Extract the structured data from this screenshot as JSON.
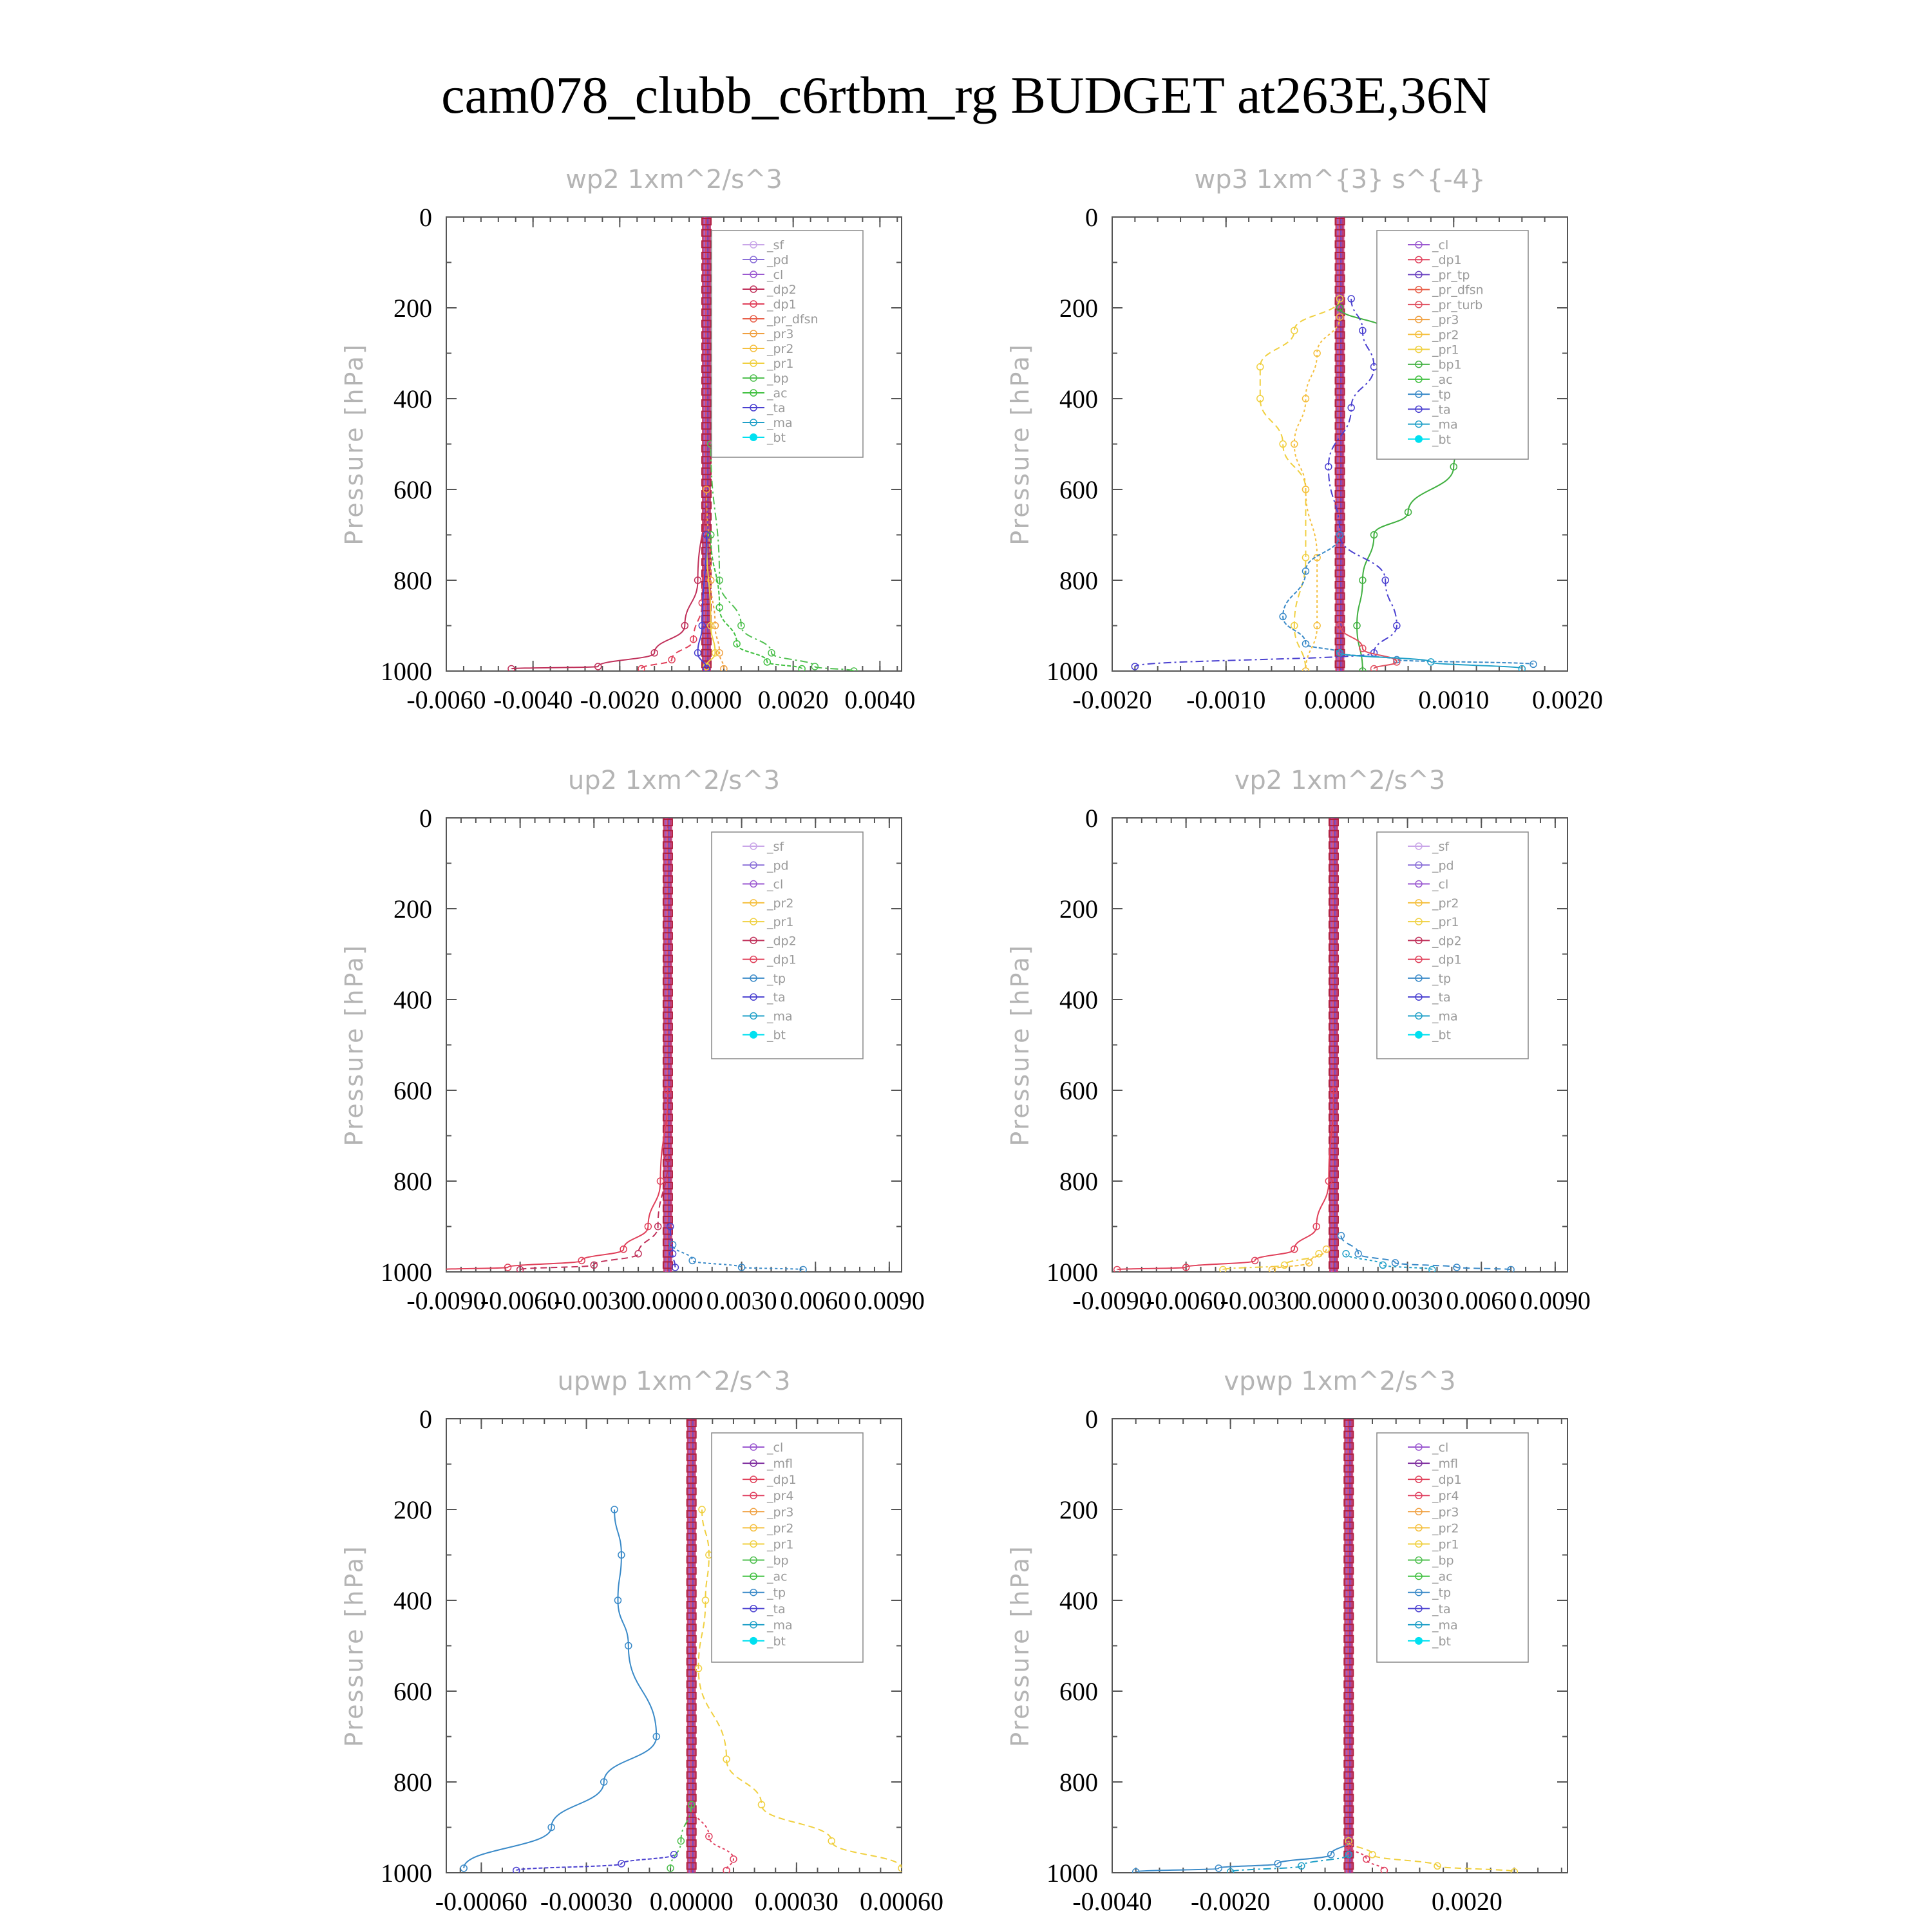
{
  "figure_title": "cam078_clubb_c6rtbm_rg  BUDGET at263E,36N",
  "colors": {
    "_sf": "#c9a6e8",
    "_pd": "#8a6fd8",
    "_cl": "#9b59d0",
    "_dp2": "#c0305a",
    "_dp1": "#e0405a",
    "_pr_dfsn": "#e8604a",
    "_pr3": "#f0a040",
    "_pr2": "#f5c040",
    "_pr1": "#f0d040",
    "_bp": "#50c050",
    "_ac": "#40c040",
    "_tp": "#3a8ac8",
    "_ta": "#4a40d0",
    "_ma": "#20a0c8",
    "_bt": "#00e0f0",
    "_pr_tp": "#6a40c0",
    "_pr_turb": "#e05060",
    "_bp1": "#40b040",
    "_mfl": "#8030a0",
    "_pr4": "#e04060"
  },
  "chart_data": [
    {
      "type": "line",
      "title": "wp2   1xm^2/s^3",
      "ylabel": "Pressure [hPa]",
      "xlim": [
        -0.006,
        0.0045
      ],
      "ylim": [
        1000,
        0
      ],
      "xticks": [
        -0.006,
        -0.004,
        -0.002,
        0.0,
        0.002,
        0.004
      ],
      "xtick_labels": [
        "-0.0060",
        "-0.0040",
        "-0.0020",
        "0.0000",
        "0.0020",
        "0.0040"
      ],
      "yticks": [
        0,
        200,
        400,
        600,
        800,
        1000
      ],
      "ytick_labels": [
        "0",
        "200",
        "400",
        "600",
        "800",
        "1000"
      ],
      "legend": [
        "_sf",
        "_pd",
        "_cl",
        "_dp2",
        "_dp1",
        "_pr_dfsn",
        "_pr3",
        "_pr2",
        "_pr1",
        "_bp",
        "_ac",
        "_ta",
        "_ma",
        "_bt"
      ],
      "series": [
        {
          "name": "_dp2",
          "x": [
            -0.0045,
            -0.0025,
            -0.0012,
            -0.0005,
            -0.0002,
            0.0
          ],
          "y": [
            995,
            990,
            960,
            900,
            800,
            600
          ]
        },
        {
          "name": "_dp1",
          "x": [
            -0.0015,
            -0.0008,
            -0.0003,
            -0.0001,
            0.0
          ],
          "y": [
            995,
            975,
            930,
            850,
            700
          ]
        },
        {
          "name": "_pr3",
          "x": [
            0.0004,
            0.0003,
            0.0002,
            0.0001,
            0.0
          ],
          "y": [
            995,
            960,
            900,
            800,
            600
          ]
        },
        {
          "name": "_bp",
          "x": [
            0.0034,
            0.0025,
            0.0015,
            0.0008,
            0.0003,
            0.0001
          ],
          "y": [
            1000,
            990,
            960,
            900,
            800,
            500
          ]
        },
        {
          "name": "_ac",
          "x": [
            0.0022,
            0.0014,
            0.0007,
            0.0003,
            0.0001
          ],
          "y": [
            995,
            980,
            940,
            860,
            700
          ]
        },
        {
          "name": "_pr1",
          "x": [
            0.0,
            0.0002,
            0.0001,
            0.0
          ],
          "y": [
            990,
            960,
            900,
            700
          ]
        },
        {
          "name": "_ta",
          "x": [
            0.0,
            -0.0002,
            -0.0001,
            0.0
          ],
          "y": [
            995,
            960,
            900,
            700
          ]
        }
      ]
    },
    {
      "type": "line",
      "title": "wp3   1xm^{3} s^{-4}",
      "ylabel": "Pressure [hPa]",
      "xlim": [
        -0.002,
        0.002
      ],
      "ylim": [
        1000,
        0
      ],
      "xticks": [
        -0.002,
        -0.001,
        0.0,
        0.001,
        0.002
      ],
      "xtick_labels": [
        "-0.0020",
        "-0.0010",
        "0.0000",
        "0.0010",
        "0.0020"
      ],
      "yticks": [
        0,
        200,
        400,
        600,
        800,
        1000
      ],
      "ytick_labels": [
        "0",
        "200",
        "400",
        "600",
        "800",
        "1000"
      ],
      "legend": [
        "_cl",
        "_dp1",
        "_pr_tp",
        "_pr_dfsn",
        "_pr_turb",
        "_pr3",
        "_pr2",
        "_pr1",
        "_bp1",
        "_ac",
        "_tp",
        "_ta",
        "_ma",
        "_bt"
      ],
      "series": [
        {
          "name": "_bp1",
          "x": [
            0.0,
            0.0004,
            0.0009,
            0.0012,
            0.001,
            0.0006,
            0.0003,
            0.0002,
            0.00015,
            0.0002
          ],
          "y": [
            200,
            250,
            330,
            450,
            550,
            650,
            700,
            800,
            900,
            1000
          ]
        },
        {
          "name": "_pr1",
          "x": [
            0.0,
            -0.0004,
            -0.0007,
            -0.0007,
            -0.0005,
            -0.0003,
            -0.0003,
            -0.0004,
            -0.0003
          ],
          "y": [
            180,
            250,
            330,
            400,
            500,
            600,
            750,
            900,
            1000
          ]
        },
        {
          "name": "_pr2",
          "x": [
            0.0,
            -0.0002,
            -0.0003,
            -0.0004,
            -0.0003,
            -0.0002,
            -0.0002,
            -0.0003
          ],
          "y": [
            220,
            300,
            400,
            500,
            600,
            750,
            900,
            1000
          ]
        },
        {
          "name": "_ta",
          "x": [
            0.0001,
            0.0002,
            0.0003,
            0.0001,
            -0.0001,
            0.0,
            0.0004,
            0.0005,
            0.0003,
            -0.0018
          ],
          "y": [
            180,
            250,
            330,
            420,
            550,
            700,
            800,
            900,
            960,
            990
          ]
        },
        {
          "name": "_tp",
          "x": [
            0.0,
            -0.0003,
            -0.0005,
            -0.0003,
            0.0,
            0.0005,
            0.0017
          ],
          "y": [
            700,
            780,
            880,
            940,
            960,
            975,
            985
          ]
        },
        {
          "name": "_pr_turb",
          "x": [
            0.0,
            0.0002,
            0.0005,
            0.0003
          ],
          "y": [
            900,
            950,
            980,
            995
          ]
        },
        {
          "name": "_ma",
          "x": [
            0.0,
            0.0008,
            0.0016
          ],
          "y": [
            960,
            980,
            995
          ]
        }
      ]
    },
    {
      "type": "line",
      "title": "up2   1xm^2/s^3",
      "ylabel": "Pressure [hPa]",
      "xlim": [
        -0.009,
        0.0095
      ],
      "ylim": [
        1000,
        0
      ],
      "xticks": [
        -0.009,
        -0.006,
        -0.003,
        0.0,
        0.003,
        0.006,
        0.009
      ],
      "xtick_labels": [
        "-0.0090",
        "-0.0060",
        "-0.0030",
        "0.0000",
        "0.0030",
        "0.0060",
        "0.0090"
      ],
      "yticks": [
        0,
        200,
        400,
        600,
        800,
        1000
      ],
      "ytick_labels": [
        "0",
        "200",
        "400",
        "600",
        "800",
        "1000"
      ],
      "legend": [
        "_sf",
        "_pd",
        "_cl",
        "_pr2",
        "_pr1",
        "_dp2",
        "_dp1",
        "_tp",
        "_ta",
        "_ma",
        "_bt"
      ],
      "series": [
        {
          "name": "_dp1",
          "x": [
            -0.0092,
            -0.0065,
            -0.0035,
            -0.0018,
            -0.0008,
            -0.0003,
            0.0
          ],
          "y": [
            995,
            990,
            975,
            950,
            900,
            800,
            600
          ]
        },
        {
          "name": "_dp2",
          "x": [
            -0.006,
            -0.003,
            -0.0012,
            -0.0004,
            0.0
          ],
          "y": [
            995,
            985,
            960,
            900,
            750
          ]
        },
        {
          "name": "_tp",
          "x": [
            0.0055,
            0.003,
            0.001,
            0.0002
          ],
          "y": [
            995,
            990,
            975,
            940
          ]
        },
        {
          "name": "_ta",
          "x": [
            0.0003,
            0.0002,
            0.0001
          ],
          "y": [
            990,
            960,
            900
          ]
        }
      ]
    },
    {
      "type": "line",
      "title": "vp2   1xm^2/s^3",
      "ylabel": "Pressure [hPa]",
      "xlim": [
        -0.009,
        0.0095
      ],
      "ylim": [
        1000,
        0
      ],
      "xticks": [
        -0.009,
        -0.006,
        -0.003,
        0.0,
        0.003,
        0.006,
        0.009
      ],
      "xtick_labels": [
        "-0.0090",
        "-0.0060",
        "-0.0030",
        "0.0000",
        "0.0030",
        "0.0060",
        "0.0090"
      ],
      "yticks": [
        0,
        200,
        400,
        600,
        800,
        1000
      ],
      "ytick_labels": [
        "0",
        "200",
        "400",
        "600",
        "800",
        "1000"
      ],
      "legend": [
        "_sf",
        "_pd",
        "_cl",
        "_pr2",
        "_pr1",
        "_dp2",
        "_dp1",
        "_tp",
        "_ta",
        "_ma",
        "_bt"
      ],
      "series": [
        {
          "name": "_dp1",
          "x": [
            -0.0088,
            -0.006,
            -0.0032,
            -0.0016,
            -0.0007,
            -0.0002,
            0.0
          ],
          "y": [
            995,
            990,
            975,
            950,
            900,
            800,
            600
          ]
        },
        {
          "name": "_tp",
          "x": [
            0.0072,
            0.005,
            0.0025,
            0.001,
            0.0003
          ],
          "y": [
            995,
            990,
            980,
            960,
            920
          ]
        },
        {
          "name": "_ma",
          "x": [
            0.004,
            0.002,
            0.0005
          ],
          "y": [
            995,
            985,
            960
          ]
        },
        {
          "name": "_pr1",
          "x": [
            -0.0045,
            -0.002,
            -0.0006
          ],
          "y": [
            995,
            985,
            960
          ]
        },
        {
          "name": "_pr2",
          "x": [
            -0.0025,
            -0.001,
            -0.0003
          ],
          "y": [
            995,
            980,
            950
          ]
        }
      ]
    },
    {
      "type": "line",
      "title": "upwp   1xm^2/s^3",
      "ylabel": "Pressure [hPa]",
      "xlim": [
        -0.0007,
        0.0006
      ],
      "ylim": [
        1000,
        0
      ],
      "xticks": [
        -0.0006,
        -0.0003,
        0.0,
        0.0003,
        0.0006
      ],
      "xtick_labels": [
        "-0.00060",
        "-0.00030",
        "0.00000",
        "0.00030",
        "0.00060"
      ],
      "yticks": [
        0,
        200,
        400,
        600,
        800,
        1000
      ],
      "ytick_labels": [
        "0",
        "200",
        "400",
        "600",
        "800",
        "1000"
      ],
      "legend": [
        "_cl",
        "_mfl",
        "_dp1",
        "_pr4",
        "_pr3",
        "_pr2",
        "_pr1",
        "_bp",
        "_ac",
        "_tp",
        "_ta",
        "_ma",
        "_bt"
      ],
      "series": [
        {
          "name": "_tp",
          "x": [
            -0.00022,
            -0.0002,
            -0.00021,
            -0.00018,
            -0.0001,
            -0.00025,
            -0.0004,
            -0.00065
          ],
          "y": [
            200,
            300,
            400,
            500,
            700,
            800,
            900,
            990
          ]
        },
        {
          "name": "_pr1",
          "x": [
            3e-05,
            5e-05,
            4e-05,
            2e-05,
            0.0001,
            0.0002,
            0.0004,
            0.0006
          ],
          "y": [
            200,
            300,
            400,
            550,
            750,
            850,
            930,
            990
          ]
        },
        {
          "name": "_pr4",
          "x": [
            0.0,
            5e-05,
            0.00012,
            0.0001
          ],
          "y": [
            850,
            920,
            970,
            995
          ]
        },
        {
          "name": "_bp",
          "x": [
            0.0,
            -3e-05,
            -6e-05
          ],
          "y": [
            850,
            930,
            990
          ]
        },
        {
          "name": "_ta",
          "x": [
            -5e-05,
            -0.0002,
            -0.0005
          ],
          "y": [
            960,
            980,
            995
          ]
        }
      ]
    },
    {
      "type": "line",
      "title": "vpwp   1xm^2/s^3",
      "ylabel": "Pressure [hPa]",
      "xlim": [
        -0.004,
        0.0037
      ],
      "ylim": [
        1000,
        0
      ],
      "xticks": [
        -0.004,
        -0.002,
        0.0,
        0.002
      ],
      "xtick_labels": [
        "-0.0040",
        "-0.0020",
        "0.0000",
        "0.0020"
      ],
      "yticks": [
        0,
        200,
        400,
        600,
        800,
        1000
      ],
      "ytick_labels": [
        "0",
        "200",
        "400",
        "600",
        "800",
        "1000"
      ],
      "legend": [
        "_cl",
        "_mfl",
        "_dp1",
        "_pr4",
        "_pr3",
        "_pr2",
        "_pr1",
        "_bp",
        "_ac",
        "_tp",
        "_ta",
        "_ma",
        "_bt"
      ],
      "series": [
        {
          "name": "_tp",
          "x": [
            0.0,
            -0.0003,
            -0.0012,
            -0.0022,
            -0.0036
          ],
          "y": [
            930,
            960,
            980,
            990,
            998
          ]
        },
        {
          "name": "_pr1",
          "x": [
            0.0,
            0.0004,
            0.0015,
            0.0028
          ],
          "y": [
            930,
            960,
            985,
            998
          ]
        },
        {
          "name": "_pr4",
          "x": [
            0.0,
            0.0003,
            0.0006
          ],
          "y": [
            940,
            970,
            995
          ]
        },
        {
          "name": "_ma",
          "x": [
            0.0,
            -0.0008,
            -0.002
          ],
          "y": [
            960,
            985,
            998
          ]
        }
      ]
    }
  ]
}
